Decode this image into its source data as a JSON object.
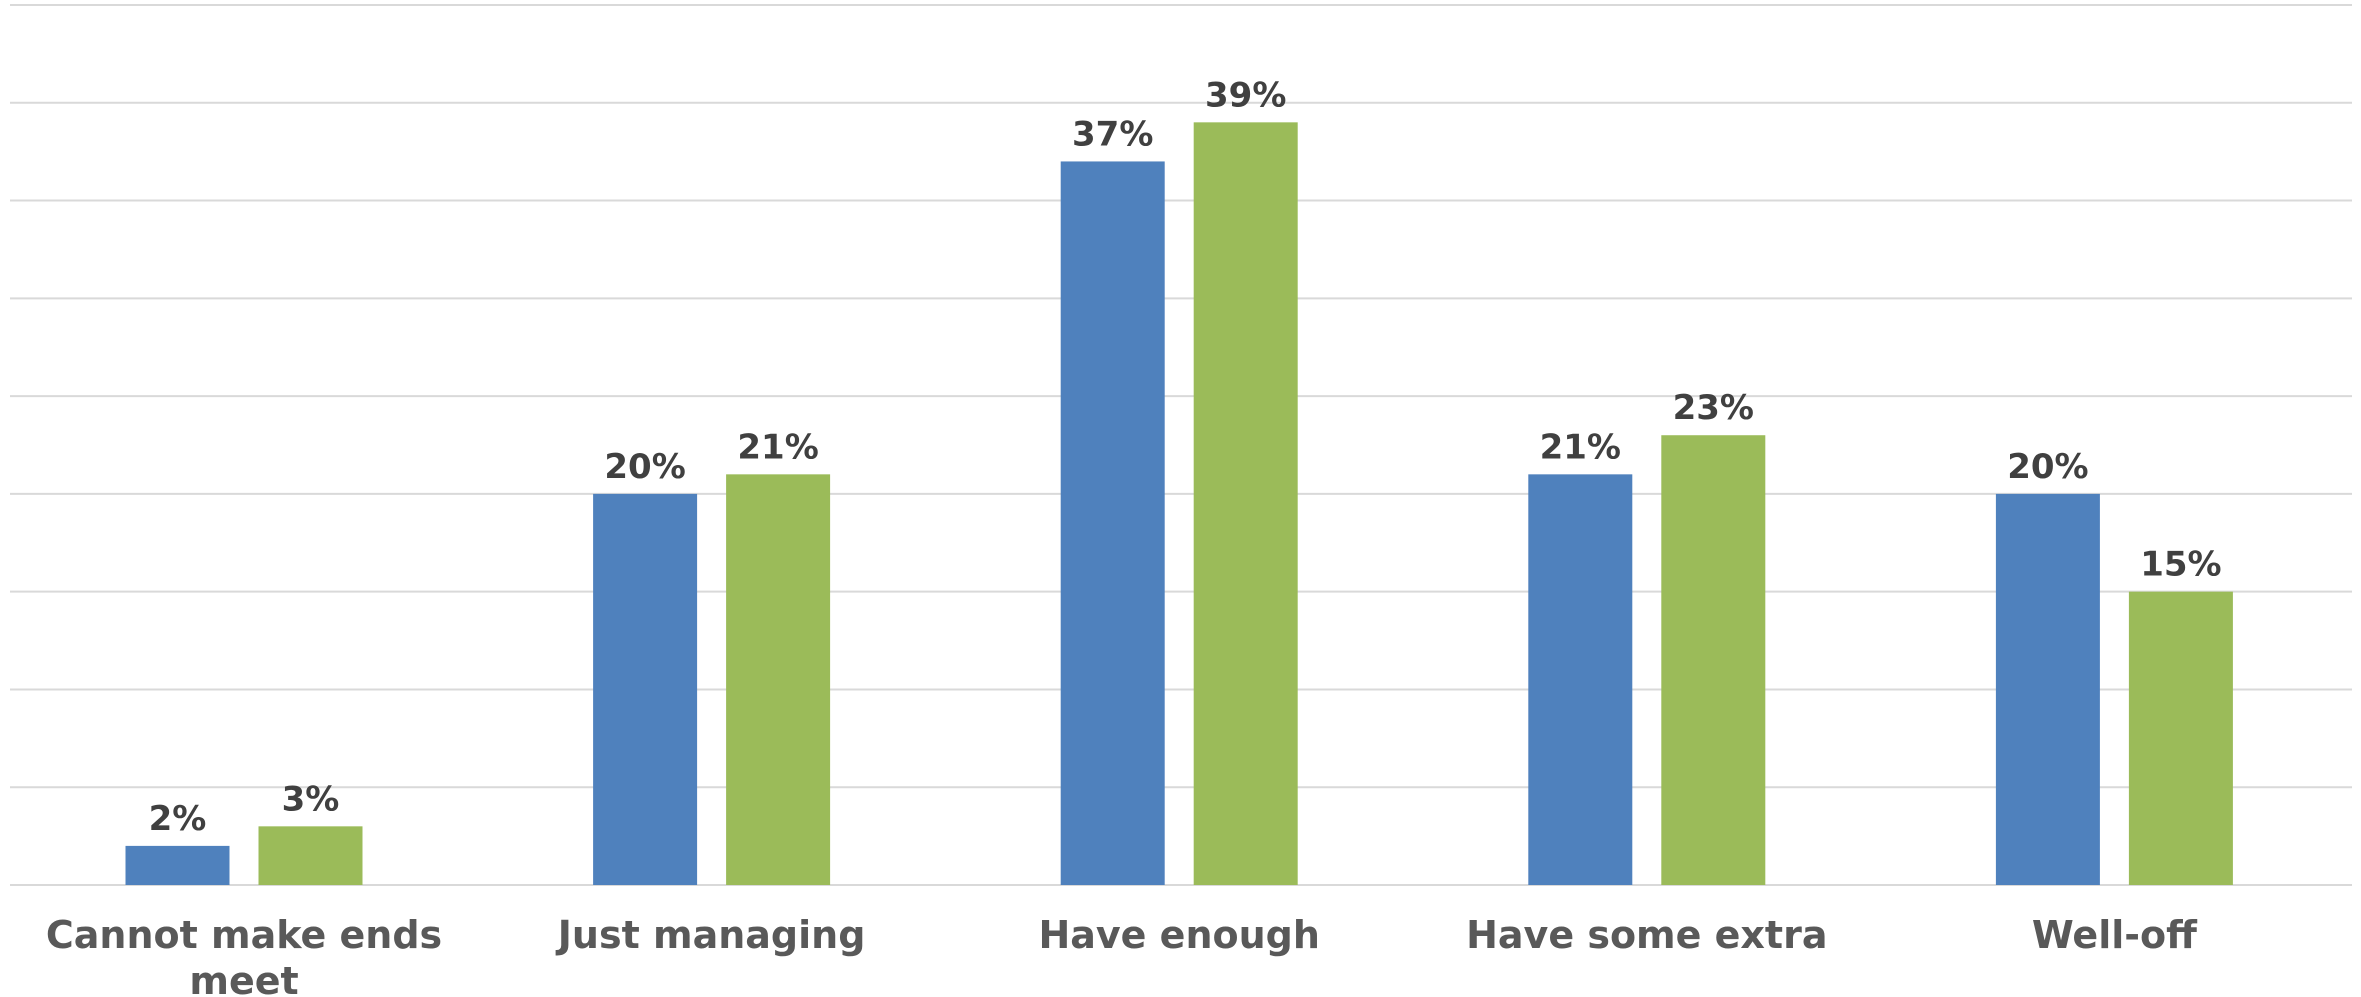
{
  "chart_data": {
    "type": "bar",
    "categories": [
      [
        "Cannot make ends",
        "meet"
      ],
      [
        "Just managing"
      ],
      [
        "Have enough"
      ],
      [
        "Have some extra"
      ],
      [
        "Well-off"
      ]
    ],
    "series": [
      {
        "color": "#4f81bd",
        "values": [
          2,
          20,
          37,
          21,
          20
        ]
      },
      {
        "color": "#9bbb59",
        "values": [
          3,
          21,
          39,
          23,
          15
        ]
      }
    ],
    "value_suffix": "%",
    "ylim": [
      0,
      45
    ],
    "y_grid_step": 5,
    "grid": true,
    "legend": "none"
  }
}
